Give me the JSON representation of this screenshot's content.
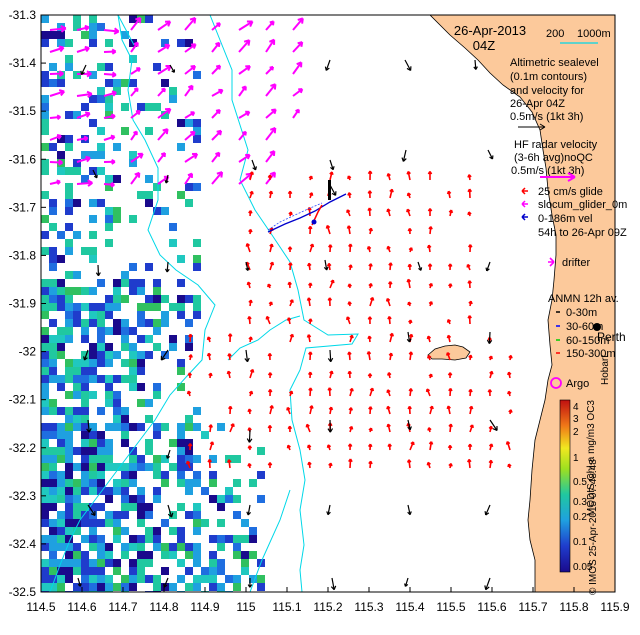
{
  "title": {
    "date": "26-Apr-2013",
    "hour": "04Z"
  },
  "scale": {
    "label_200": "200",
    "label_1000": "1000m"
  },
  "legend": {
    "altimetric": [
      "Altimetric sealevel",
      "(0.1m contours)",
      "and velocity for",
      "26-Apr 04Z",
      "0.5m/s (1kt 3h)"
    ],
    "hf_radar": [
      "HF radar velocity",
      "(3-6h avg)noQC",
      "0.5m/s (1kt 3h)"
    ],
    "glider": [
      "25 cm/s glide",
      "slocum_glider_0m",
      "0-186m vel",
      "54h to 26-Apr 09Z"
    ],
    "drifter": "drifter",
    "anmn": [
      "ANMN 12h av.",
      "0-30m",
      "30-60m",
      "60-150m",
      "150-300m"
    ],
    "perth": "Perth",
    "hobart": "Hobart",
    "argo": "Argo",
    "credit": "© IMOS 25-Apr-2015 07:48:48",
    "colorbar_label": "MODIS Chl-a mg/m3 OC3",
    "colorbar_ticks": [
      "4",
      "3",
      "2",
      "1",
      "0.5",
      "0.3",
      "0.2",
      "0.1",
      "0.05"
    ]
  },
  "axes": {
    "x_ticks": [
      "114.5",
      "114.6",
      "114.7",
      "114.8",
      "114.9",
      "115",
      "115.1",
      "115.2",
      "115.3",
      "115.4",
      "115.5",
      "115.6",
      "115.7",
      "115.8",
      "115.9"
    ],
    "y_ticks": [
      "-31.3",
      "-31.4",
      "-31.5",
      "-31.6",
      "-31.7",
      "-31.8",
      "-31.9",
      "-32",
      "-32.1",
      "-32.2",
      "-32.3",
      "-32.4",
      "-32.5"
    ]
  },
  "colors": {
    "land": "#fcc99b",
    "altimetry": "#ff00ff",
    "hf_radar": "#ff0000",
    "bathymetry": "#00d8e8",
    "glider": "#0000cc",
    "argo": "#ff00ff"
  }
}
